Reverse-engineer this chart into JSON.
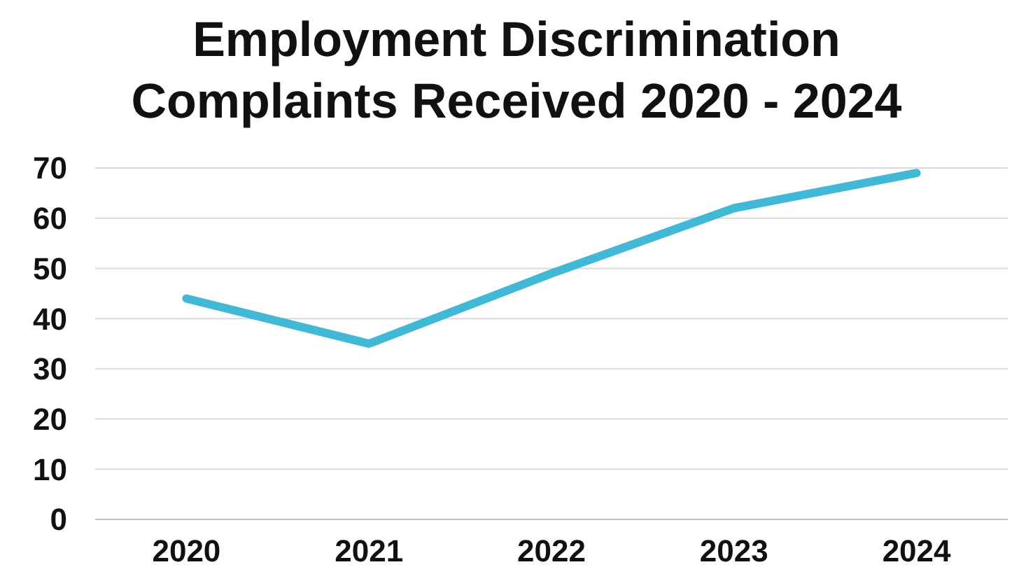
{
  "chart_data": {
    "type": "line",
    "title": "Employment Discrimination Complaints Received 2020 - 2024",
    "categories": [
      "2020",
      "2021",
      "2022",
      "2023",
      "2024"
    ],
    "series": [
      {
        "color": "#41b8d5",
        "values": [
          44,
          35,
          49,
          62,
          69
        ]
      }
    ],
    "ylim": [
      0,
      70
    ],
    "yticks": [
      0,
      10,
      20,
      30,
      40,
      50,
      60,
      70
    ],
    "grid": "y",
    "marker": "none",
    "line_style": "solid"
  }
}
